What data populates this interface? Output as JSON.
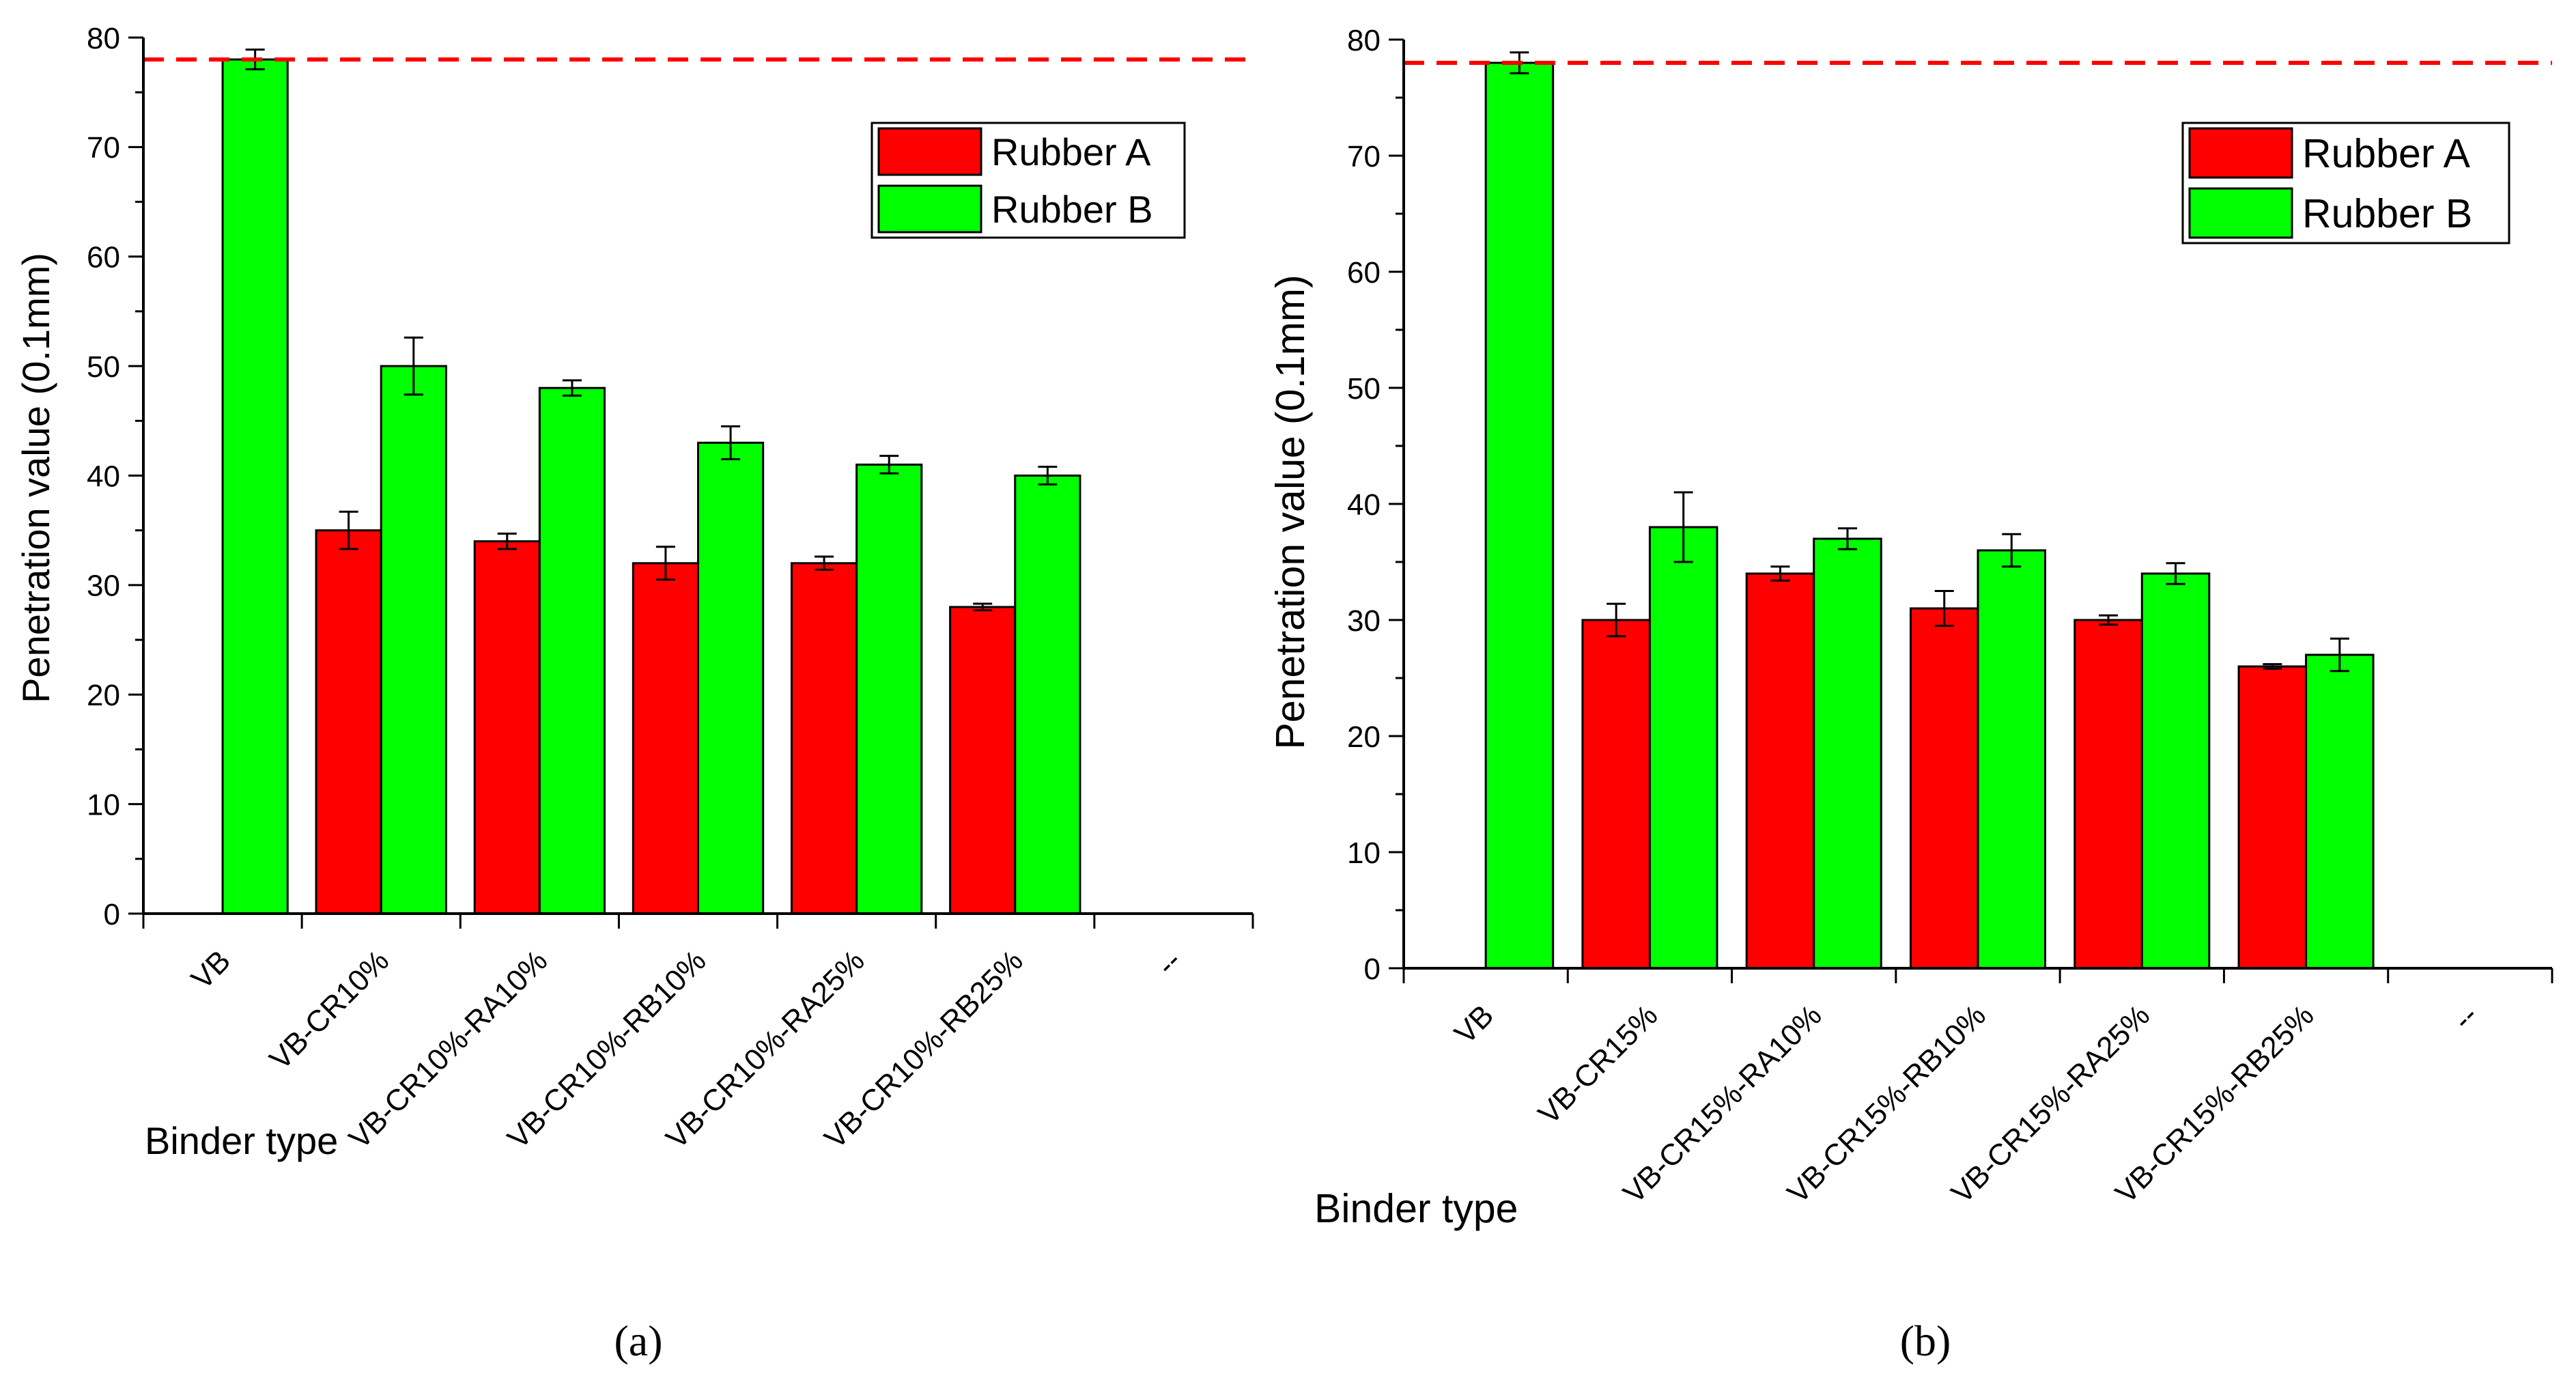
{
  "chart_data": [
    {
      "panel_label": "(a)",
      "type": "bar",
      "title": "",
      "xlabel": "Binder type",
      "ylabel": "Penetration value (0.1mm)",
      "ylim": [
        0,
        80
      ],
      "yticks": [
        "0",
        "10",
        "20",
        "30",
        "40",
        "50",
        "60",
        "70",
        "80"
      ],
      "categories": [
        "VB",
        "VB-CR10%",
        "VB-CR10%-RA10%",
        "VB-CR10%-RB10%",
        "VB-CR10%-RA25%",
        "VB-CR10%-RB25%",
        "--"
      ],
      "reference_line": 78,
      "legend_position": "top-right",
      "series": [
        {
          "name": "Rubber A",
          "color": "#ff0000",
          "values": [
            null,
            35,
            34,
            32,
            32,
            28,
            null
          ],
          "errors": [
            null,
            1.7,
            0.7,
            1.5,
            0.6,
            0.3,
            null
          ]
        },
        {
          "name": "Rubber B",
          "color": "#00ff00",
          "values": [
            78,
            50,
            48,
            43,
            41,
            40,
            null
          ],
          "errors": [
            0.9,
            2.6,
            0.7,
            1.5,
            0.8,
            0.8,
            null
          ]
        }
      ]
    },
    {
      "panel_label": "(b)",
      "type": "bar",
      "title": "",
      "xlabel": "Binder type",
      "ylabel": "Penetration value (0.1mm)",
      "ylim": [
        0,
        80
      ],
      "yticks": [
        "0",
        "10",
        "20",
        "30",
        "40",
        "50",
        "60",
        "70",
        "80"
      ],
      "categories": [
        "VB",
        "VB-CR15%",
        "VB-CR15%-RA10%",
        "VB-CR15%-RB10%",
        "VB-CR15%-RA25%",
        "VB-CR15%-RB25%",
        "--"
      ],
      "reference_line": 78,
      "legend_position": "top-right",
      "series": [
        {
          "name": "Rubber A",
          "color": "#ff0000",
          "values": [
            null,
            30,
            34,
            31,
            30,
            26,
            null
          ],
          "errors": [
            null,
            1.4,
            0.6,
            1.5,
            0.4,
            0.2,
            null
          ]
        },
        {
          "name": "Rubber B",
          "color": "#00ff00",
          "values": [
            78,
            38,
            37,
            36,
            34,
            27,
            null
          ],
          "errors": [
            0.9,
            3.0,
            0.9,
            1.4,
            0.9,
            1.4,
            null
          ]
        }
      ]
    }
  ]
}
